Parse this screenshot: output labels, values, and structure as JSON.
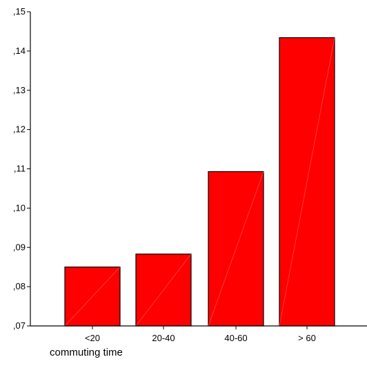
{
  "chart_data": {
    "type": "bar",
    "categories": [
      "<20",
      "20-40",
      "40-60",
      "> 60"
    ],
    "values": [
      0.085,
      0.0883,
      0.1093,
      0.1434
    ],
    "ylim": [
      0.07,
      0.15
    ],
    "yticks": [
      0.07,
      0.08,
      0.09,
      0.1,
      0.11,
      0.12,
      0.13,
      0.14,
      0.15
    ],
    "ytick_labels": [
      ",07",
      ",08",
      ",09",
      ",10",
      ",11",
      ",12",
      ",13",
      ",14",
      ",15"
    ],
    "xlabel": "commuting time",
    "ylabel": "",
    "title": "",
    "grid": false,
    "bar_color": "#ff0000",
    "edge_color": "#000000"
  }
}
